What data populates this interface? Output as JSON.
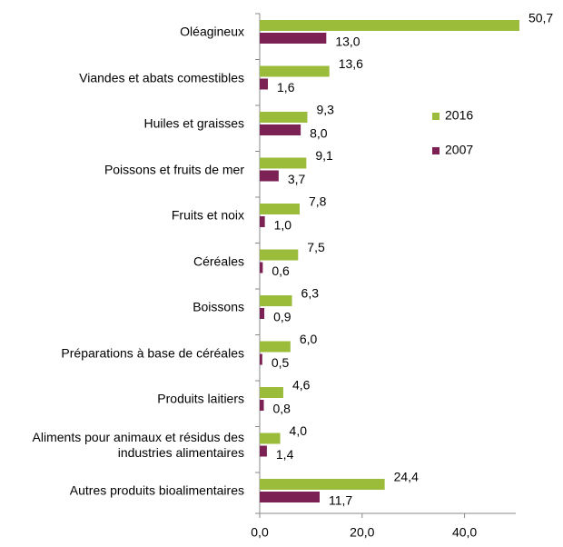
{
  "chart_data": {
    "type": "bar",
    "orientation": "horizontal",
    "categories": [
      "Oléagineux",
      "Viandes et abats comestibles",
      "Huiles et graisses",
      "Poissons et fruits de mer",
      "Fruits et noix",
      "Céréales",
      "Boissons",
      "Préparations à base de céréales",
      "Produits laitiers",
      "Aliments pour animaux et résidus des industries alimentaires",
      "Autres produits bioalimentaires"
    ],
    "series": [
      {
        "name": "2016",
        "color": "#9bbb3b",
        "values": [
          50.7,
          13.6,
          9.3,
          9.1,
          7.8,
          7.5,
          6.3,
          6.0,
          4.6,
          4.0,
          24.4
        ],
        "value_labels": [
          "50,7",
          "13,6",
          "9,3",
          "9,1",
          "7,8",
          "7,5",
          "6,3",
          "6,0",
          "4,6",
          "4,0",
          "24,4"
        ]
      },
      {
        "name": "2007",
        "color": "#7b2153",
        "values": [
          13.0,
          1.6,
          8.0,
          3.7,
          1.0,
          0.6,
          0.9,
          0.5,
          0.8,
          1.4,
          11.7
        ],
        "value_labels": [
          "13,0",
          "1,6",
          "8,0",
          "3,7",
          "1,0",
          "0,6",
          "0,9",
          "0,5",
          "0,8",
          "1,4",
          "11,7"
        ]
      }
    ],
    "xlim": [
      0,
      50
    ],
    "xticks": [
      {
        "value": 0,
        "label": "0,0"
      },
      {
        "value": 20,
        "label": "20,0"
      },
      {
        "value": 40,
        "label": "40,0"
      }
    ],
    "legend": "right"
  }
}
